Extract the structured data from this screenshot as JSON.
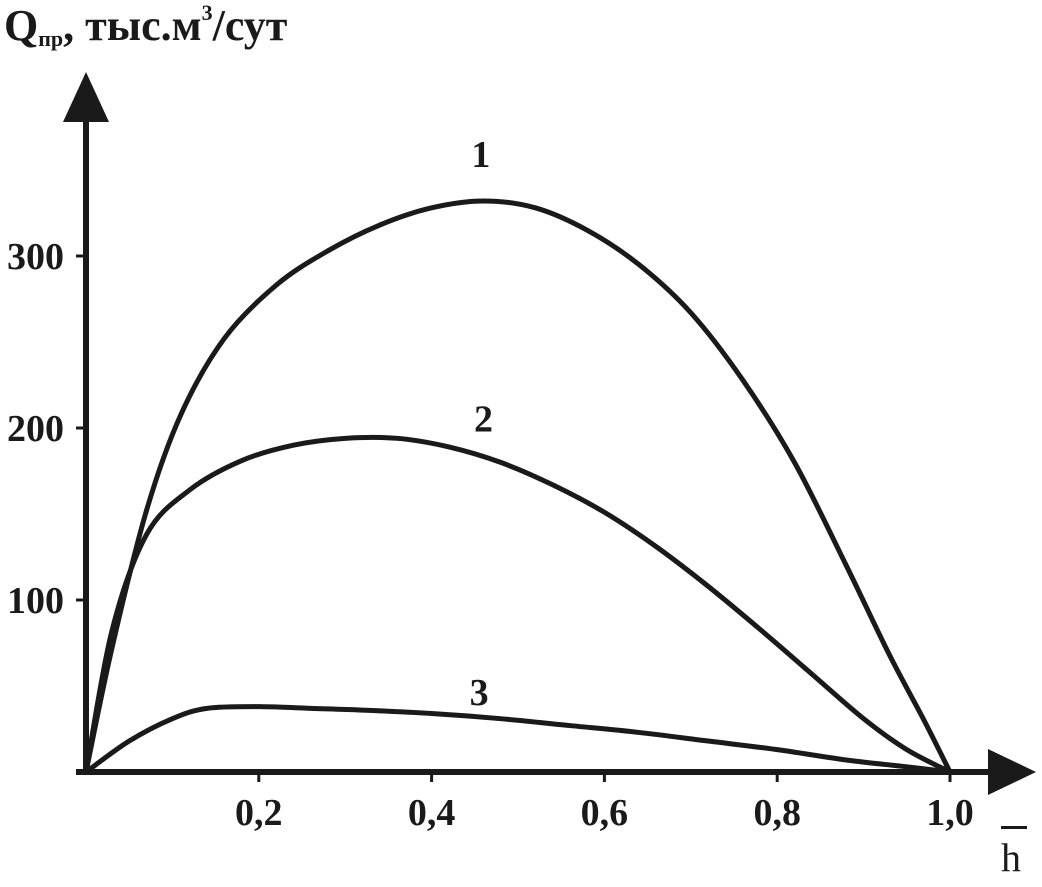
{
  "chart_data": {
    "type": "line",
    "ylabel": {
      "main": "Q",
      "sub": "пр",
      "rest": ", тыс.м",
      "sup": "3",
      "tail": "/сут"
    },
    "xlabel": "h",
    "xlim": [
      0,
      1.0
    ],
    "ylim": [
      0,
      360
    ],
    "x_ticks": [
      {
        "value": 0.2,
        "label": "0,2"
      },
      {
        "value": 0.4,
        "label": "0,4"
      },
      {
        "value": 0.6,
        "label": "0,6"
      },
      {
        "value": 0.8,
        "label": "0,8"
      },
      {
        "value": 1.0,
        "label": "1,0"
      }
    ],
    "y_ticks": [
      {
        "value": 100,
        "label": "100"
      },
      {
        "value": 200,
        "label": "200"
      },
      {
        "value": 300,
        "label": "300"
      }
    ],
    "series": [
      {
        "name": "1",
        "x": [
          0,
          0.03,
          0.07,
          0.11,
          0.16,
          0.22,
          0.28,
          0.34,
          0.4,
          0.46,
          0.52,
          0.58,
          0.64,
          0.7,
          0.76,
          0.82,
          0.88,
          0.93,
          0.97,
          1.0
        ],
        "y": [
          0,
          72,
          152,
          208,
          252,
          283,
          303,
          318,
          328,
          332,
          328,
          315,
          295,
          267,
          228,
          180,
          120,
          68,
          30,
          0
        ],
        "label_at": [
          0.457,
          360
        ]
      },
      {
        "name": "2",
        "x": [
          0,
          0.03,
          0.07,
          0.12,
          0.18,
          0.24,
          0.3,
          0.36,
          0.42,
          0.48,
          0.54,
          0.6,
          0.66,
          0.72,
          0.78,
          0.84,
          0.9,
          0.95,
          1.0
        ],
        "y": [
          0,
          82,
          138,
          164,
          181,
          190,
          194,
          194,
          189,
          180,
          167,
          151,
          131,
          108,
          83,
          57,
          31,
          13,
          0
        ],
        "label_at": [
          0.46,
          206
        ]
      },
      {
        "name": "3",
        "x": [
          0,
          0.05,
          0.1,
          0.14,
          0.2,
          0.26,
          0.32,
          0.4,
          0.48,
          0.56,
          0.64,
          0.72,
          0.8,
          0.88,
          0.95,
          1.0
        ],
        "y": [
          0,
          18,
          31,
          37,
          38,
          37,
          36,
          34,
          31,
          27,
          23,
          18,
          13,
          7,
          3,
          0
        ],
        "label_at": [
          0.455,
          47
        ]
      }
    ]
  }
}
